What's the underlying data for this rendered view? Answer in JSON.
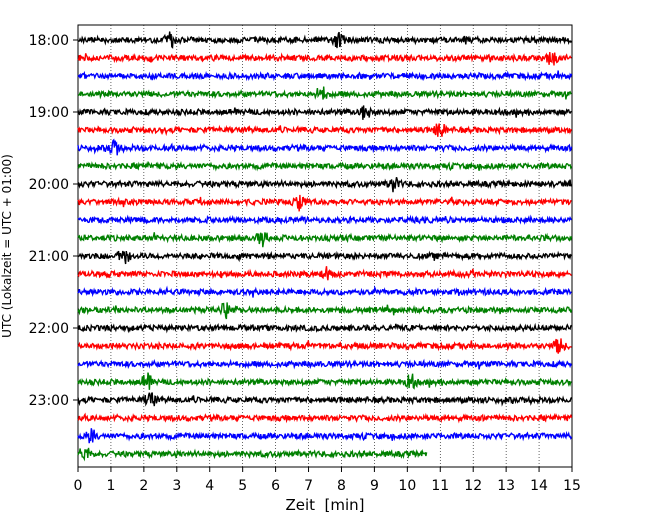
{
  "chart_data": {
    "type": "line",
    "title": "",
    "xlabel": "Zeit  [min]",
    "ylabel": "UTC (Lokalzeit = UTC + 01:00)",
    "xlim": [
      0,
      15
    ],
    "x_ticks": [
      0,
      1,
      2,
      3,
      4,
      5,
      6,
      7,
      8,
      9,
      10,
      11,
      12,
      13,
      14,
      15
    ],
    "x_tick_labels": [
      "0",
      "1",
      "2",
      "3",
      "4",
      "5",
      "6",
      "7",
      "8",
      "9",
      "10",
      "11",
      "12",
      "13",
      "14",
      "15"
    ],
    "y_tick_labels": [
      "18:00",
      "19:00",
      "20:00",
      "21:00",
      "22:00",
      "23:00"
    ],
    "y_tick_traces": [
      0,
      4,
      8,
      12,
      16,
      20
    ],
    "grid": "vertical-dotted",
    "trace_colors": [
      "#000000",
      "#ff0000",
      "#0000ff",
      "#008000"
    ],
    "trace_minutes": 15,
    "traces": [
      {
        "start": "18:00",
        "end_min": 15
      },
      {
        "start": "18:15",
        "end_min": 15
      },
      {
        "start": "18:30",
        "end_min": 15
      },
      {
        "start": "18:45",
        "end_min": 15
      },
      {
        "start": "19:00",
        "end_min": 15
      },
      {
        "start": "19:15",
        "end_min": 15
      },
      {
        "start": "19:30",
        "end_min": 15
      },
      {
        "start": "19:45",
        "end_min": 15
      },
      {
        "start": "20:00",
        "end_min": 15
      },
      {
        "start": "20:15",
        "end_min": 15
      },
      {
        "start": "20:30",
        "end_min": 15
      },
      {
        "start": "20:45",
        "end_min": 15
      },
      {
        "start": "21:00",
        "end_min": 15
      },
      {
        "start": "21:15",
        "end_min": 15
      },
      {
        "start": "21:30",
        "end_min": 15
      },
      {
        "start": "21:45",
        "end_min": 15
      },
      {
        "start": "22:00",
        "end_min": 15
      },
      {
        "start": "22:15",
        "end_min": 15
      },
      {
        "start": "22:30",
        "end_min": 15
      },
      {
        "start": "22:45",
        "end_min": 15
      },
      {
        "start": "23:00",
        "end_min": 15
      },
      {
        "start": "23:15",
        "end_min": 15
      },
      {
        "start": "23:30",
        "end_min": 15
      },
      {
        "start": "23:45",
        "end_min": 10.6
      }
    ],
    "events": [
      {
        "trace": 0,
        "min": 2.8
      },
      {
        "trace": 0,
        "min": 7.9
      },
      {
        "trace": 1,
        "min": 14.4
      },
      {
        "trace": 3,
        "min": 7.4
      },
      {
        "trace": 4,
        "min": 8.7
      },
      {
        "trace": 5,
        "min": 11.0
      },
      {
        "trace": 6,
        "min": 1.1
      },
      {
        "trace": 8,
        "min": 9.6
      },
      {
        "trace": 9,
        "min": 6.7
      },
      {
        "trace": 11,
        "min": 5.6
      },
      {
        "trace": 12,
        "min": 1.4
      },
      {
        "trace": 13,
        "min": 7.6
      },
      {
        "trace": 15,
        "min": 4.5
      },
      {
        "trace": 17,
        "min": 14.6
      },
      {
        "trace": 19,
        "min": 2.1
      },
      {
        "trace": 19,
        "min": 10.1
      },
      {
        "trace": 20,
        "min": 2.2
      },
      {
        "trace": 22,
        "min": 0.4
      },
      {
        "trace": 23,
        "min": 0.2
      }
    ]
  }
}
